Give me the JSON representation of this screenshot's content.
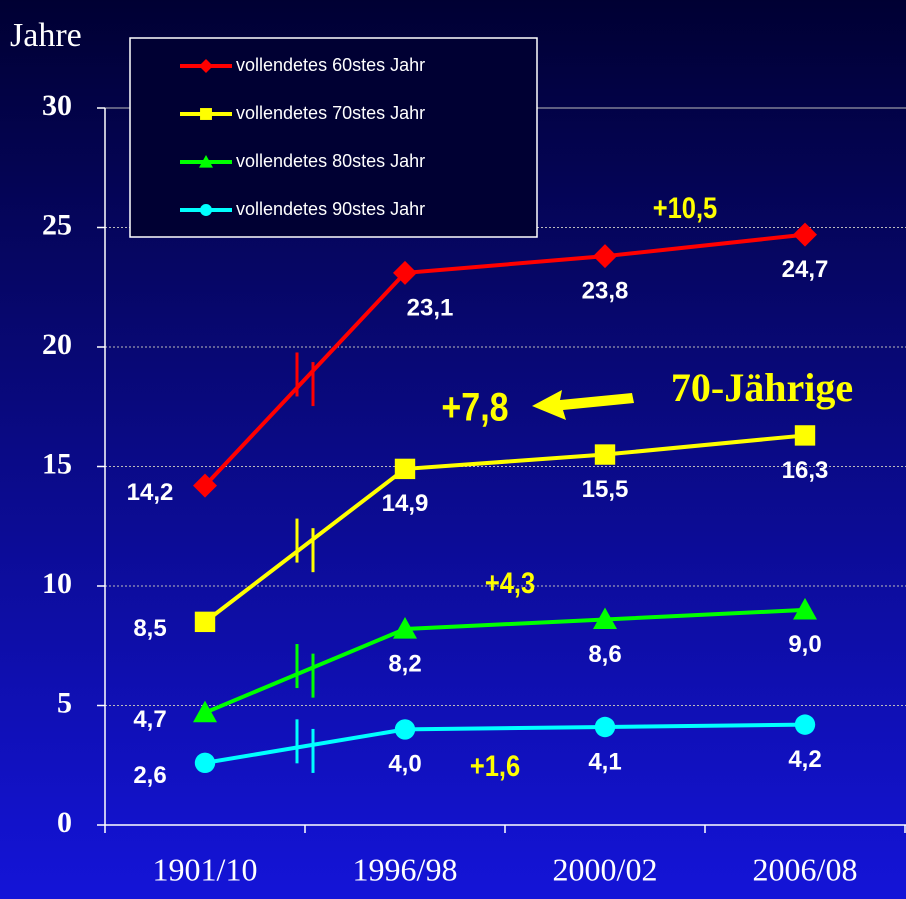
{
  "chart_data": {
    "type": "line",
    "y_axis_label": "Jahre",
    "categories": [
      "1901/10",
      "1996/98",
      "2000/02",
      "2006/08"
    ],
    "series": [
      {
        "name": "vollendetes 60stes Jahr",
        "color": "#ff0000",
        "marker": "diamond",
        "values": [
          14.2,
          23.1,
          23.8,
          24.7
        ],
        "value_labels": [
          "14,2",
          "23,1",
          "23,8",
          "24,7"
        ]
      },
      {
        "name": "vollendetes 70stes Jahr",
        "color": "#ffff00",
        "marker": "square",
        "values": [
          8.5,
          14.9,
          15.5,
          16.3
        ],
        "value_labels": [
          "8,5",
          "14,9",
          "15,5",
          "16,3"
        ]
      },
      {
        "name": "vollendetes 80stes Jahr",
        "color": "#00ff00",
        "marker": "triangle",
        "values": [
          4.7,
          8.2,
          8.6,
          9.0
        ],
        "value_labels": [
          "4,7",
          "8,2",
          "8,6",
          "9,0"
        ]
      },
      {
        "name": "vollendetes 90stes Jahr",
        "color": "#00ffff",
        "marker": "circle",
        "values": [
          2.6,
          4.0,
          4.1,
          4.2
        ],
        "value_labels": [
          "2,6",
          "4,0",
          "4,1",
          "4,2"
        ]
      }
    ],
    "annotations": [
      "+10,5",
      "+7,8",
      "+4,3",
      "+1,6",
      "70-Jährige"
    ],
    "ylim": [
      0,
      30
    ],
    "yticks": [
      0,
      5,
      10,
      15,
      20,
      25,
      30
    ],
    "grid": true
  }
}
